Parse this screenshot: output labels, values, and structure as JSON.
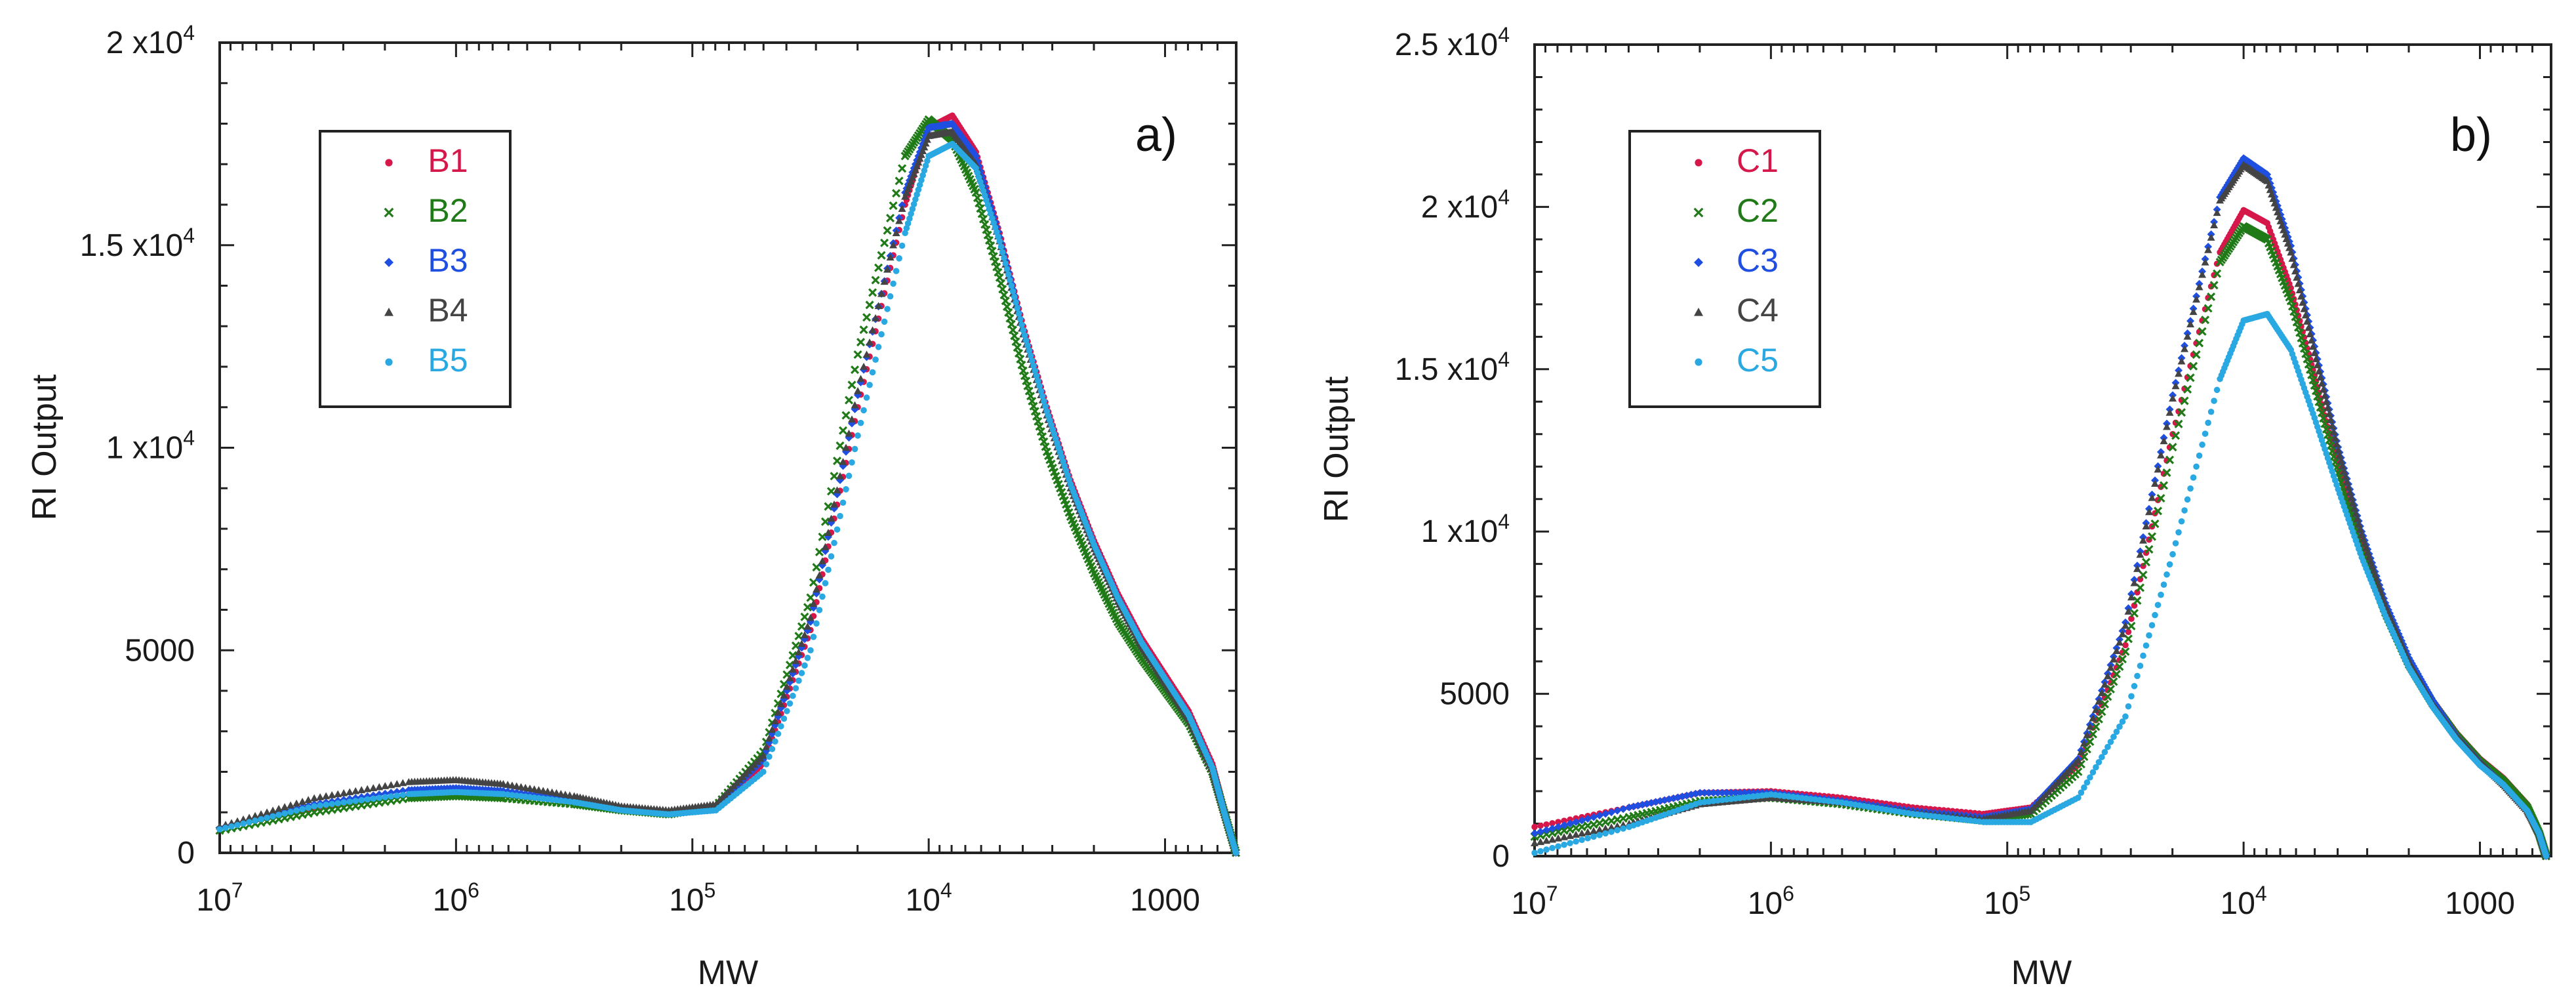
{
  "chart_data": [
    {
      "type": "scatter",
      "panel_label": "a)",
      "xlabel": "MW",
      "ylabel": "RI Output",
      "x_scale": "log",
      "x_direction": "reversed",
      "xlim": [
        10000000,
        500
      ],
      "ylim": [
        0,
        20000
      ],
      "x_ticks": [
        {
          "value": 10000000,
          "base": "10",
          "exp": "7"
        },
        {
          "value": 1000000,
          "base": "10",
          "exp": "6"
        },
        {
          "value": 100000,
          "base": "10",
          "exp": "5"
        },
        {
          "value": 10000,
          "base": "10",
          "exp": "4"
        },
        {
          "value": 1000,
          "base": "1000",
          "exp": ""
        }
      ],
      "y_ticks": [
        {
          "value": 0,
          "base": "0",
          "exp": ""
        },
        {
          "value": 5000,
          "base": "5000",
          "exp": ""
        },
        {
          "value": 10000,
          "base": "1 x10",
          "exp": "4"
        },
        {
          "value": 15000,
          "base": "1.5 x10",
          "exp": "4"
        },
        {
          "value": 20000,
          "base": "2 x10",
          "exp": "4"
        }
      ],
      "grid": false,
      "legend_position": "top-left",
      "series": [
        {
          "name": "B1",
          "color": "#d6174a",
          "marker": "dot",
          "log_mw": [
            7.0,
            6.6,
            6.2,
            6.0,
            5.8,
            5.5,
            5.3,
            5.1,
            4.9,
            4.7,
            4.5,
            4.3,
            4.1,
            4.0,
            3.9,
            3.8,
            3.7,
            3.6,
            3.5,
            3.4,
            3.3,
            3.2,
            3.1,
            3.0,
            2.9,
            2.8,
            2.75,
            2.7
          ],
          "ri": [
            600,
            1100,
            1450,
            1500,
            1450,
            1250,
            1050,
            950,
            1100,
            2200,
            5500,
            11000,
            16000,
            17900,
            18200,
            17300,
            15300,
            13000,
            11000,
            9200,
            7700,
            6400,
            5300,
            4400,
            3500,
            2200,
            1100,
            0
          ]
        },
        {
          "name": "B2",
          "color": "#1f7a17",
          "marker": "x",
          "log_mw": [
            7.0,
            6.6,
            6.2,
            6.0,
            5.8,
            5.5,
            5.3,
            5.1,
            4.9,
            4.7,
            4.5,
            4.3,
            4.1,
            4.0,
            3.9,
            3.8,
            3.7,
            3.6,
            3.5,
            3.4,
            3.3,
            3.2,
            3.1,
            3.0,
            2.9,
            2.8,
            2.75,
            2.7
          ],
          "ri": [
            550,
            1000,
            1350,
            1400,
            1350,
            1200,
            1050,
            950,
            1150,
            2500,
            6300,
            12300,
            17200,
            18100,
            17600,
            16300,
            14200,
            11900,
            9900,
            8300,
            6900,
            5700,
            4800,
            4000,
            3200,
            2000,
            1000,
            0
          ]
        },
        {
          "name": "B3",
          "color": "#1f4fe0",
          "marker": "diamond",
          "log_mw": [
            7.0,
            6.6,
            6.2,
            6.0,
            5.8,
            5.5,
            5.3,
            5.1,
            4.9,
            4.7,
            4.5,
            4.3,
            4.1,
            4.0,
            3.9,
            3.8,
            3.7,
            3.6,
            3.5,
            3.4,
            3.3,
            3.2,
            3.1,
            3.0,
            2.9,
            2.8,
            2.75,
            2.7
          ],
          "ri": [
            620,
            1200,
            1550,
            1600,
            1530,
            1300,
            1100,
            1000,
            1120,
            2300,
            5700,
            11300,
            16300,
            17900,
            18000,
            17200,
            15200,
            12900,
            10900,
            9100,
            7600,
            6300,
            5200,
            4300,
            3400,
            2100,
            1000,
            0
          ]
        },
        {
          "name": "B4",
          "color": "#444444",
          "marker": "triangle",
          "log_mw": [
            7.0,
            6.6,
            6.2,
            6.0,
            5.8,
            5.5,
            5.3,
            5.1,
            4.9,
            4.7,
            4.5,
            4.3,
            4.1,
            4.0,
            3.9,
            3.8,
            3.7,
            3.6,
            3.5,
            3.4,
            3.3,
            3.2,
            3.1,
            3.0,
            2.9,
            2.8,
            2.75,
            2.7
          ],
          "ri": [
            650,
            1350,
            1750,
            1800,
            1700,
            1400,
            1150,
            1050,
            1200,
            2400,
            5800,
            11400,
            16200,
            17700,
            17800,
            17000,
            15100,
            12800,
            10800,
            9000,
            7500,
            6200,
            5100,
            4200,
            3300,
            2000,
            1000,
            0
          ]
        },
        {
          "name": "B5",
          "color": "#2aa8e2",
          "marker": "dot",
          "log_mw": [
            7.0,
            6.6,
            6.2,
            6.0,
            5.8,
            5.5,
            5.3,
            5.1,
            4.9,
            4.7,
            4.5,
            4.3,
            4.1,
            4.0,
            3.9,
            3.8,
            3.7,
            3.6,
            3.5,
            3.4,
            3.3,
            3.2,
            3.1,
            3.0,
            2.9,
            2.8,
            2.75,
            2.7
          ],
          "ri": [
            580,
            1150,
            1450,
            1500,
            1450,
            1250,
            1050,
            950,
            1050,
            2000,
            5000,
            10300,
            15300,
            17200,
            17500,
            16900,
            15100,
            12900,
            10900,
            9100,
            7600,
            6300,
            5200,
            4300,
            3400,
            2100,
            1000,
            0
          ]
        }
      ]
    },
    {
      "type": "scatter",
      "panel_label": "b)",
      "xlabel": "MW",
      "ylabel": "RI Output",
      "x_scale": "log",
      "x_direction": "reversed",
      "xlim": [
        10000000,
        500
      ],
      "ylim": [
        0,
        25000
      ],
      "x_ticks": [
        {
          "value": 10000000,
          "base": "10",
          "exp": "7"
        },
        {
          "value": 1000000,
          "base": "10",
          "exp": "6"
        },
        {
          "value": 100000,
          "base": "10",
          "exp": "5"
        },
        {
          "value": 10000,
          "base": "10",
          "exp": "4"
        },
        {
          "value": 1000,
          "base": "1000",
          "exp": ""
        }
      ],
      "y_ticks": [
        {
          "value": 0,
          "base": "0",
          "exp": ""
        },
        {
          "value": 5000,
          "base": "5000",
          "exp": ""
        },
        {
          "value": 10000,
          "base": "1 x10",
          "exp": "4"
        },
        {
          "value": 15000,
          "base": "1.5 x10",
          "exp": "4"
        },
        {
          "value": 20000,
          "base": "2 x10",
          "exp": "4"
        },
        {
          "value": 25000,
          "base": "2.5 x10",
          "exp": "4"
        }
      ],
      "grid": false,
      "legend_position": "top-left",
      "series": [
        {
          "name": "C1",
          "color": "#d6174a",
          "marker": "dot",
          "log_mw": [
            7.0,
            6.6,
            6.3,
            6.0,
            5.7,
            5.4,
            5.1,
            4.9,
            4.7,
            4.5,
            4.3,
            4.1,
            4.0,
            3.9,
            3.8,
            3.7,
            3.6,
            3.5,
            3.4,
            3.3,
            3.2,
            3.1,
            3.0,
            2.9,
            2.8,
            2.75,
            2.72
          ],
          "ri": [
            900,
            1500,
            1950,
            2000,
            1800,
            1500,
            1300,
            1500,
            2800,
            6500,
            13000,
            18600,
            19900,
            19500,
            17500,
            14800,
            12000,
            9700,
            7700,
            6000,
            4800,
            3800,
            3000,
            2400,
            1600,
            800,
            0
          ]
        },
        {
          "name": "C2",
          "color": "#1f7a17",
          "marker": "x",
          "log_mw": [
            7.0,
            6.6,
            6.3,
            6.0,
            5.7,
            5.4,
            5.1,
            4.9,
            4.7,
            4.5,
            4.3,
            4.1,
            4.0,
            3.9,
            3.8,
            3.7,
            3.6,
            3.5,
            3.4,
            3.3,
            3.2,
            3.1,
            3.0,
            2.9,
            2.8,
            2.75,
            2.72
          ],
          "ri": [
            600,
            1200,
            1700,
            1800,
            1600,
            1300,
            1100,
            1300,
            2600,
            6300,
            12600,
            18300,
            19400,
            19000,
            17100,
            14500,
            11800,
            9500,
            7500,
            5900,
            4700,
            3700,
            2900,
            2300,
            1500,
            700,
            0
          ]
        },
        {
          "name": "C3",
          "color": "#1f4fe0",
          "marker": "diamond",
          "log_mw": [
            7.0,
            6.6,
            6.3,
            6.0,
            5.7,
            5.4,
            5.1,
            4.9,
            4.7,
            4.5,
            4.3,
            4.1,
            4.0,
            3.9,
            3.8,
            3.7,
            3.6,
            3.5,
            3.4,
            3.3,
            3.2,
            3.1,
            3.0,
            2.9,
            2.8,
            2.75,
            2.72
          ],
          "ri": [
            700,
            1500,
            1950,
            1950,
            1700,
            1400,
            1200,
            1450,
            3000,
            7200,
            14200,
            20300,
            21500,
            21000,
            18800,
            15700,
            12600,
            10000,
            7800,
            6100,
            4800,
            3700,
            2900,
            2200,
            1400,
            700,
            0
          ]
        },
        {
          "name": "C4",
          "color": "#444444",
          "marker": "triangle",
          "log_mw": [
            7.0,
            6.6,
            6.3,
            6.0,
            5.7,
            5.4,
            5.1,
            4.9,
            4.7,
            4.5,
            4.3,
            4.1,
            4.0,
            3.9,
            3.8,
            3.7,
            3.6,
            3.5,
            3.4,
            3.3,
            3.2,
            3.1,
            3.0,
            2.9,
            2.8,
            2.75,
            2.72
          ],
          "ri": [
            400,
            1000,
            1600,
            1800,
            1650,
            1350,
            1150,
            1400,
            2950,
            7100,
            14100,
            20200,
            21300,
            20800,
            18600,
            15500,
            12500,
            9900,
            7700,
            6000,
            4700,
            3700,
            2900,
            2200,
            1400,
            700,
            0
          ]
        },
        {
          "name": "C5",
          "color": "#2aa8e2",
          "marker": "dot",
          "log_mw": [
            7.0,
            6.6,
            6.3,
            6.0,
            5.7,
            5.4,
            5.1,
            4.9,
            4.7,
            4.5,
            4.3,
            4.1,
            4.0,
            3.9,
            3.8,
            3.7,
            3.6,
            3.5,
            3.4,
            3.3,
            3.2,
            3.1,
            3.0,
            2.9,
            2.8,
            2.75,
            2.72
          ],
          "ri": [
            100,
            900,
            1650,
            1900,
            1650,
            1300,
            1050,
            1050,
            1800,
            4300,
            9300,
            14700,
            16500,
            16700,
            15600,
            13500,
            11300,
            9200,
            7400,
            5800,
            4600,
            3600,
            2800,
            2200,
            1400,
            700,
            0
          ]
        }
      ]
    }
  ]
}
